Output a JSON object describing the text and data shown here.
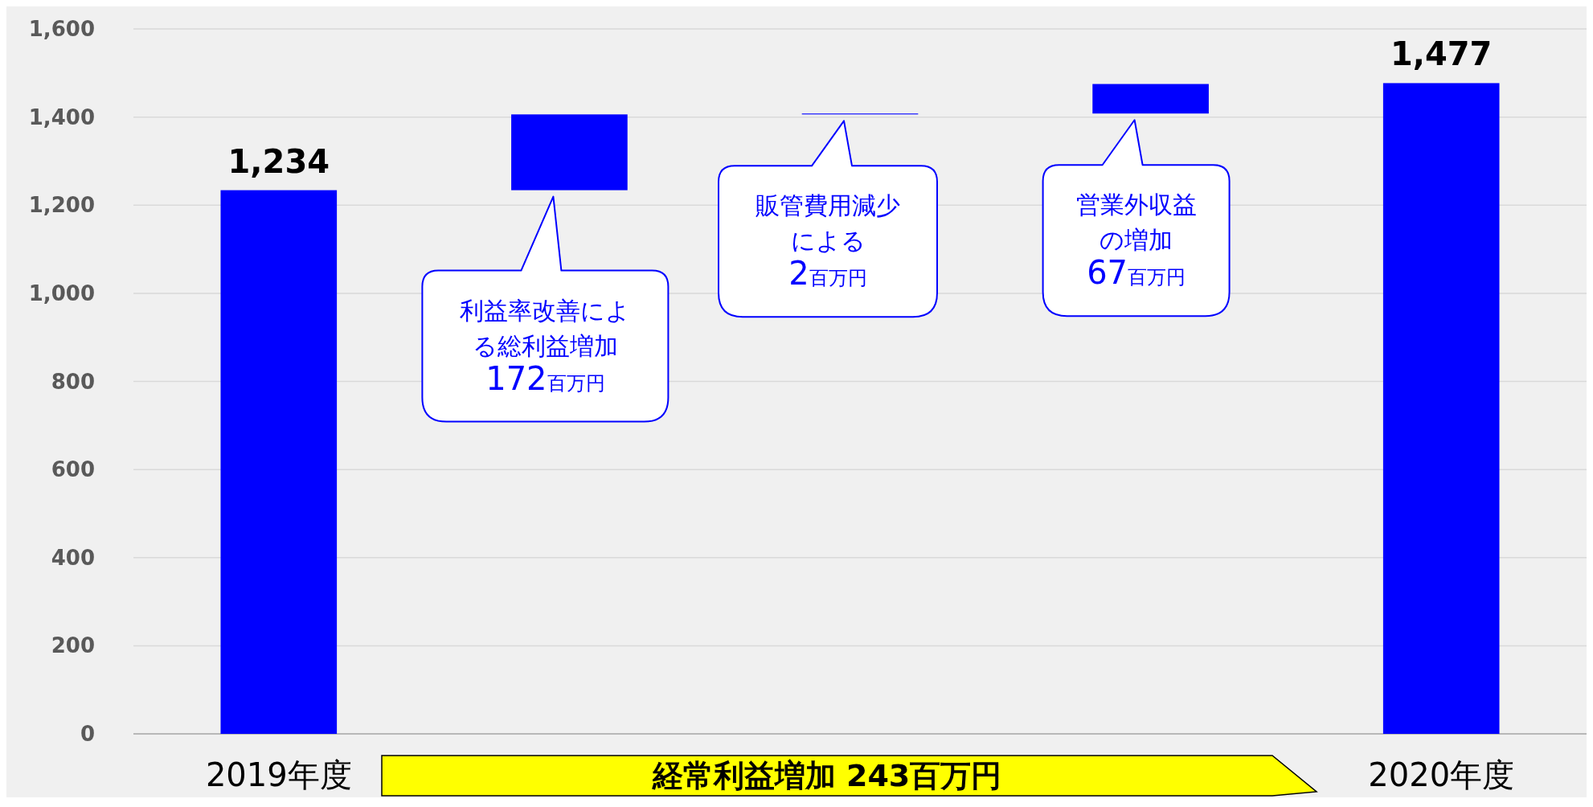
{
  "chart_data": {
    "type": "bar",
    "categories": [
      "2019年度",
      null,
      null,
      null,
      "2020年度"
    ],
    "values": [
      1234,
      172,
      2,
      67,
      1477
    ],
    "base": [
      0,
      1234,
      1406,
      1408,
      0
    ],
    "color": "#0000ff",
    "value_labels": [
      "1,234",
      null,
      null,
      null,
      "1,477"
    ],
    "ylim": [
      0,
      1600
    ],
    "yticks": [
      {
        "value": 0,
        "label": "0"
      },
      {
        "value": 200,
        "label": "200"
      },
      {
        "value": 400,
        "label": "400"
      },
      {
        "value": 600,
        "label": "600"
      },
      {
        "value": 800,
        "label": "800"
      },
      {
        "value": 1000,
        "label": "1,000"
      },
      {
        "value": 1200,
        "label": "1,200"
      },
      {
        "value": 1400,
        "label": "1,400"
      },
      {
        "value": 1600,
        "label": "1,600"
      }
    ],
    "grid": "y",
    "annotations": [
      "利益率改善による総利益増加172百万円",
      "販管費用減少による2百万円",
      "営業外収益の増加67百万円",
      "経常利益増加  243百万円"
    ]
  }
}
